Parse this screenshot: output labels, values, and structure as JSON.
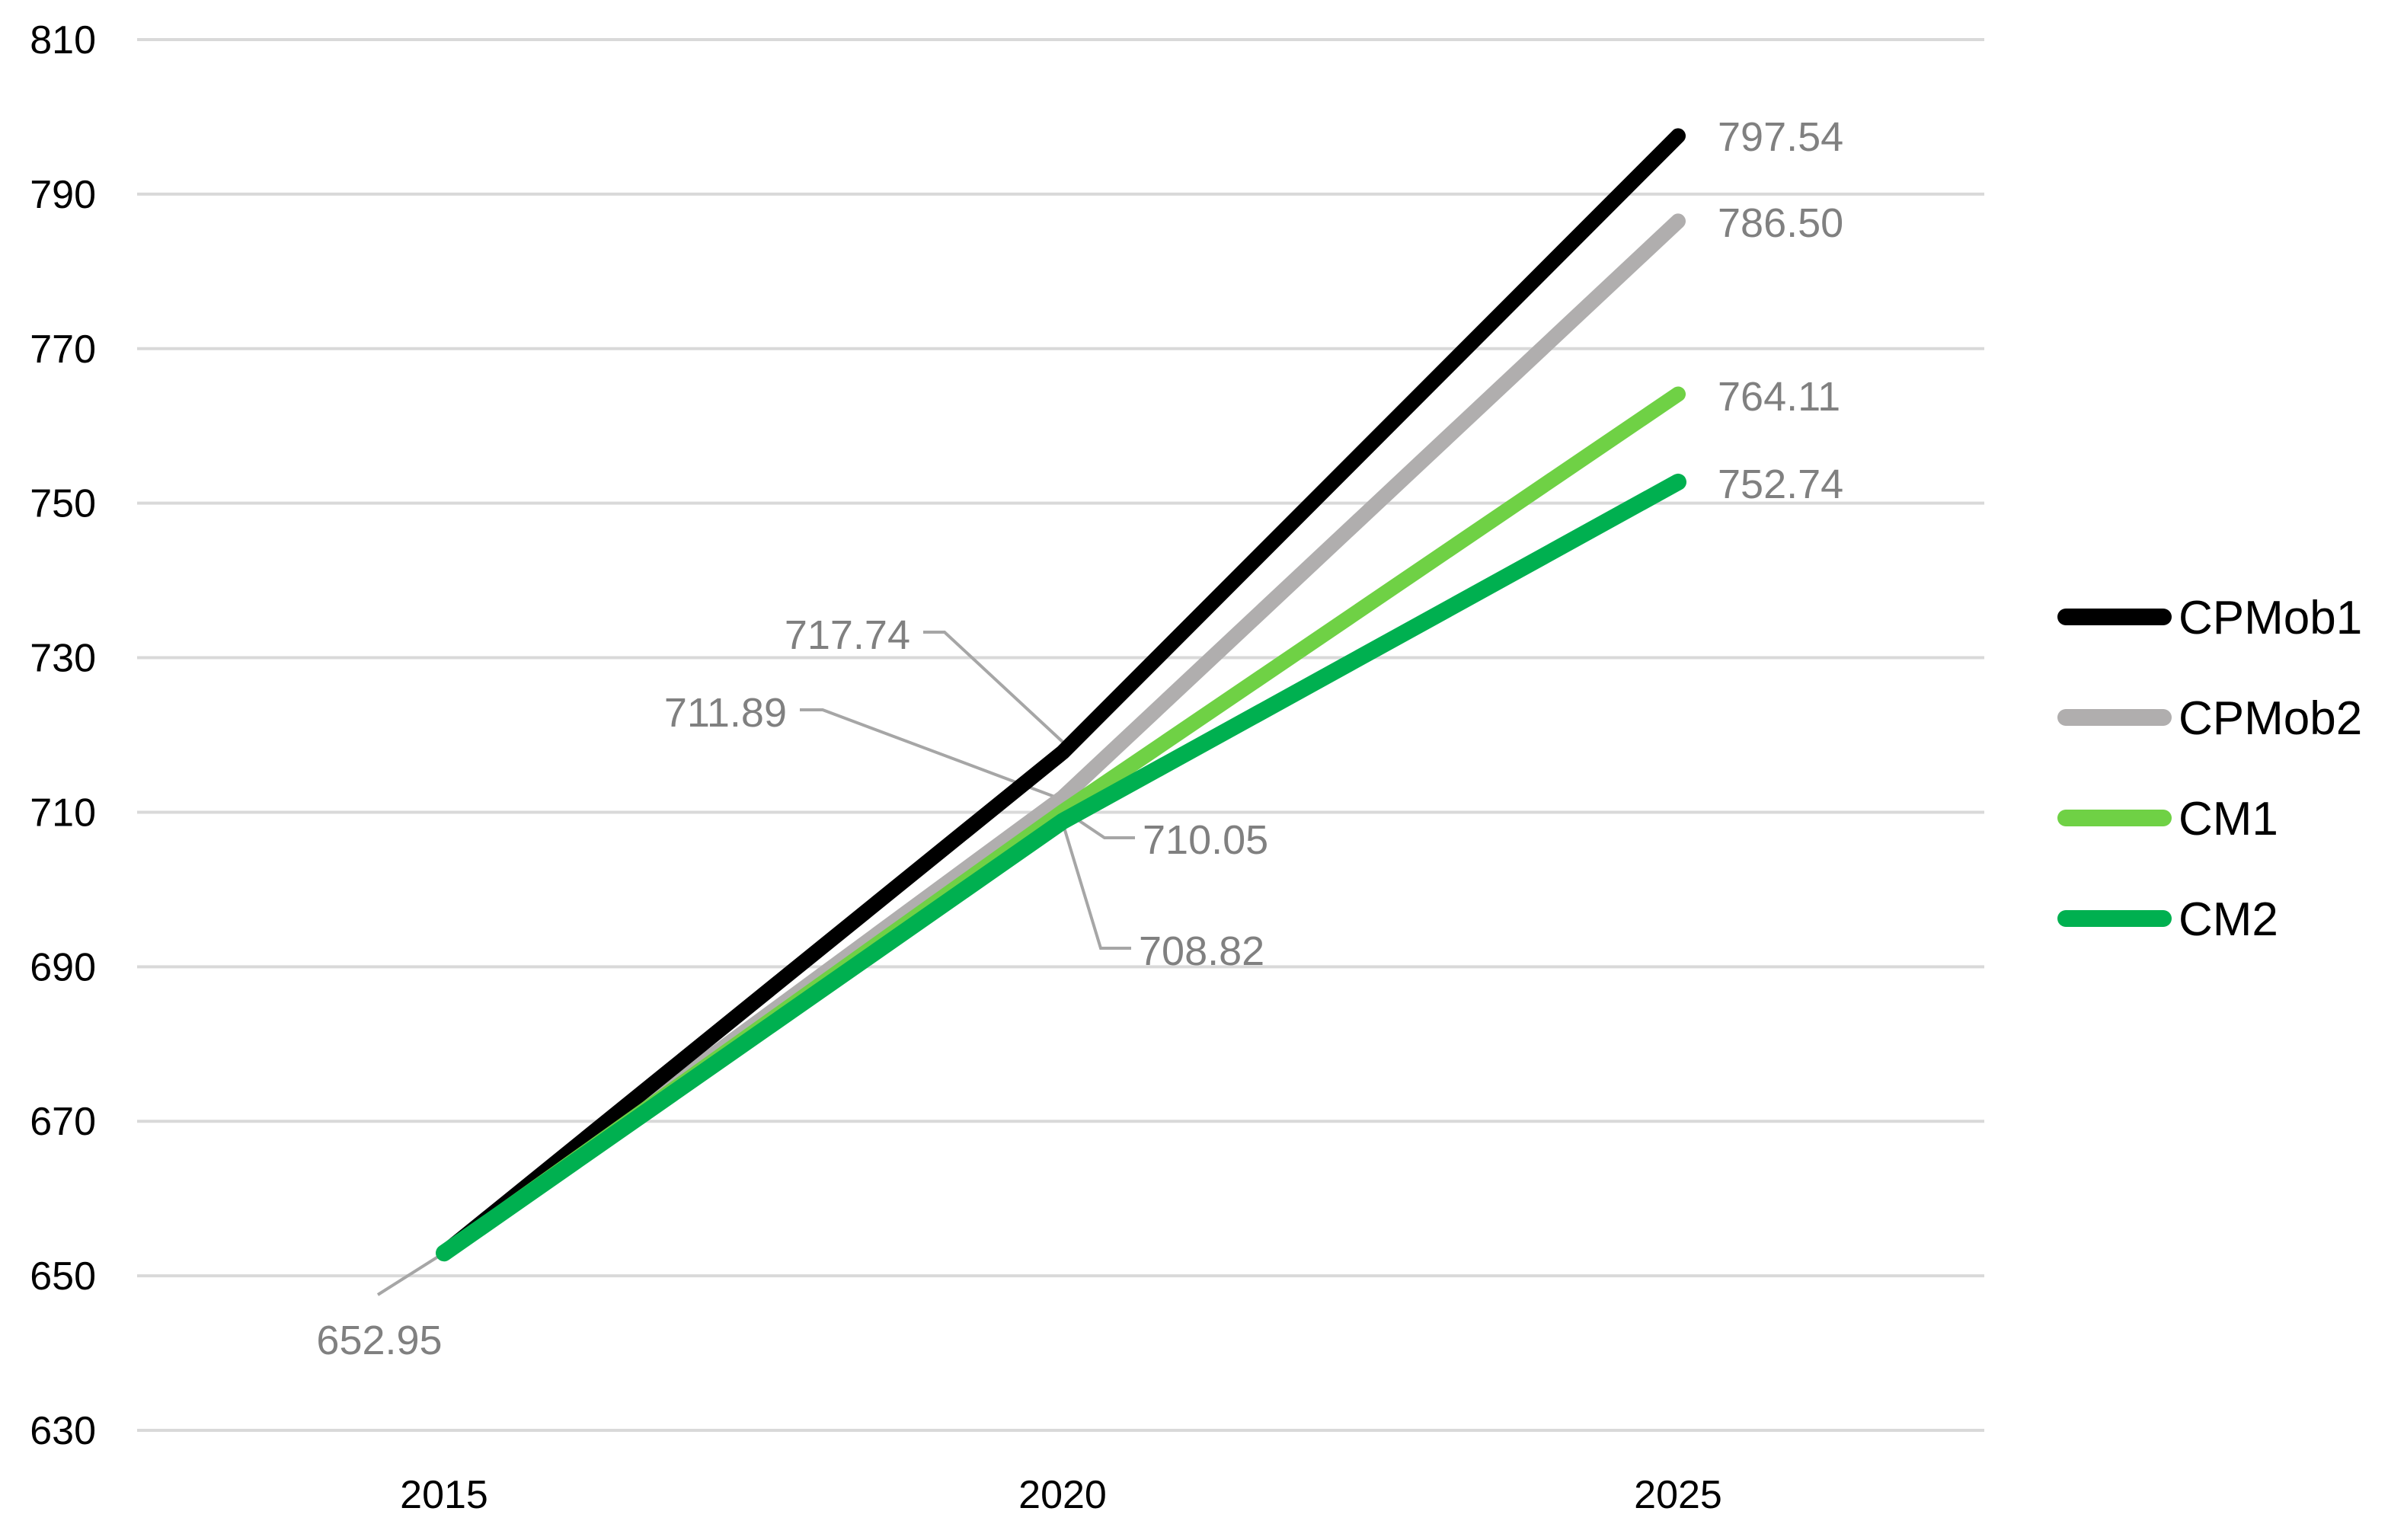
{
  "chart_data": {
    "type": "line",
    "title": "",
    "xlabel": "",
    "ylabel": "",
    "categories": [
      "2015",
      "2020",
      "2025"
    ],
    "ylim": [
      630,
      810
    ],
    "yticks": [
      "810",
      "790",
      "770",
      "750",
      "730",
      "710",
      "690",
      "670",
      "650",
      "630"
    ],
    "grid": true,
    "legend_position": "right",
    "series": [
      {
        "name": "CPMob1",
        "color": "#000000",
        "values": [
          652.95,
          717.74,
          797.54
        ]
      },
      {
        "name": "CPMob2",
        "color": "#b0aeae",
        "values": [
          652.95,
          711.89,
          786.5
        ]
      },
      {
        "name": "CM1",
        "color": "#6fd145",
        "values": [
          652.95,
          710.05,
          764.11
        ]
      },
      {
        "name": "CM2",
        "color": "#00b050",
        "values": [
          652.95,
          708.82,
          752.74
        ]
      }
    ],
    "data_labels": [
      "652.95",
      "717.74",
      "711.89",
      "710.05",
      "708.82",
      "797.54",
      "786.50",
      "764.11",
      "752.74"
    ]
  }
}
